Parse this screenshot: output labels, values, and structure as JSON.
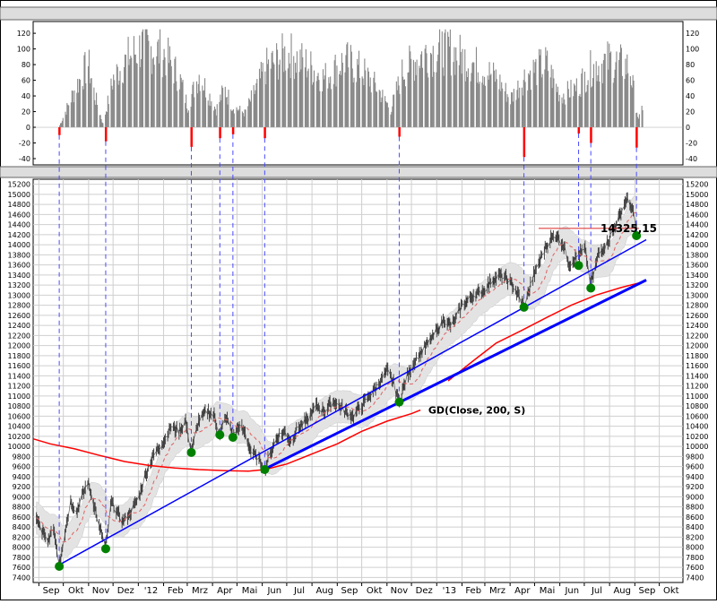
{
  "chart_data": [
    {
      "type": "bar",
      "panel": "oscillator",
      "ylim": [
        -48,
        135
      ],
      "yticks": [
        -40,
        -20,
        0,
        20,
        40,
        60,
        80,
        100,
        120
      ],
      "bar_color": "#888888",
      "negative_color": "#ff0000",
      "segments": [
        {
          "date": "2011-09-25",
          "level": 0
        },
        {
          "date": "2011-10-15",
          "level": 55
        },
        {
          "date": "2011-10-31",
          "level": 90
        },
        {
          "date": "2011-11-08",
          "level": 45
        },
        {
          "date": "2011-11-18",
          "level": 5
        },
        {
          "date": "2011-12-01",
          "level": 70
        },
        {
          "date": "2011-12-20",
          "level": 100
        },
        {
          "date": "2012-01-05",
          "level": 115
        },
        {
          "date": "2012-02-01",
          "level": 105
        },
        {
          "date": "2012-02-20",
          "level": 70
        },
        {
          "date": "2012-03-01",
          "level": 30
        },
        {
          "date": "2012-03-15",
          "level": 75
        },
        {
          "date": "2012-04-05",
          "level": 25
        },
        {
          "date": "2012-04-15",
          "level": 55
        },
        {
          "date": "2012-04-25",
          "level": 30
        },
        {
          "date": "2012-05-10",
          "level": 20
        },
        {
          "date": "2012-05-20",
          "level": 45
        },
        {
          "date": "2012-06-05",
          "level": 85
        },
        {
          "date": "2012-07-01",
          "level": 105
        },
        {
          "date": "2012-07-25",
          "level": 90
        },
        {
          "date": "2012-08-15",
          "level": 70
        },
        {
          "date": "2012-09-10",
          "level": 95
        },
        {
          "date": "2012-10-01",
          "level": 80
        },
        {
          "date": "2012-10-20",
          "level": 55
        },
        {
          "date": "2012-11-05",
          "level": 25
        },
        {
          "date": "2012-11-20",
          "level": 80
        },
        {
          "date": "2012-12-15",
          "level": 105
        },
        {
          "date": "2013-01-15",
          "level": 110
        },
        {
          "date": "2013-02-15",
          "level": 90
        },
        {
          "date": "2013-03-15",
          "level": 70
        },
        {
          "date": "2013-04-01",
          "level": 40
        },
        {
          "date": "2013-04-20",
          "level": 75
        },
        {
          "date": "2013-05-15",
          "level": 90
        },
        {
          "date": "2013-06-01",
          "level": 45
        },
        {
          "date": "2013-06-20",
          "level": 55
        },
        {
          "date": "2013-07-10",
          "level": 85
        },
        {
          "date": "2013-08-01",
          "level": 95
        },
        {
          "date": "2013-08-25",
          "level": 85
        },
        {
          "date": "2013-09-05",
          "level": 10
        },
        {
          "date": "2013-09-10",
          "level": 30
        }
      ],
      "negative_spikes": [
        {
          "date": "2011-09-26",
          "value": -10
        },
        {
          "date": "2011-11-22",
          "value": -18
        },
        {
          "date": "2012-03-06",
          "value": -25
        },
        {
          "date": "2012-04-10",
          "value": -14
        },
        {
          "date": "2012-04-26",
          "value": -9
        },
        {
          "date": "2012-06-04",
          "value": -14
        },
        {
          "date": "2012-11-16",
          "value": -12
        },
        {
          "date": "2013-04-18",
          "value": -38
        },
        {
          "date": "2013-06-24",
          "value": -8
        },
        {
          "date": "2013-07-09",
          "value": -20
        },
        {
          "date": "2013-09-03",
          "value": -26
        }
      ]
    },
    {
      "type": "line",
      "panel": "price",
      "ylim": [
        7300,
        15300
      ],
      "yticks": [
        7400,
        7600,
        7800,
        8000,
        8200,
        8400,
        8600,
        8800,
        9000,
        9200,
        9400,
        9600,
        9800,
        10000,
        10200,
        10400,
        10600,
        10800,
        11000,
        11200,
        11400,
        11600,
        11800,
        12000,
        12200,
        12400,
        12600,
        12800,
        13000,
        13200,
        13400,
        13600,
        13800,
        14000,
        14200,
        14400,
        14600,
        14800,
        15000,
        15200
      ],
      "x_range": [
        "2011-08-25",
        "2013-10-30"
      ],
      "x_tick_labels": [
        "Sep",
        "Okt",
        "Nov",
        "Dez",
        "'12",
        "Feb",
        "Mrz",
        "Apr",
        "Mai",
        "Jun",
        "Jul",
        "Aug",
        "Sep",
        "Okt",
        "Nov",
        "Dez",
        "'13",
        "Feb",
        "Mrz",
        "Apr",
        "Mai",
        "Jun",
        "Jul",
        "Aug",
        "Sep",
        "Okt"
      ],
      "grid": true,
      "price_path": [
        {
          "date": "2011-08-29",
          "value": 8600
        },
        {
          "date": "2011-09-05",
          "value": 8300
        },
        {
          "date": "2011-09-12",
          "value": 8100
        },
        {
          "date": "2011-09-19",
          "value": 8400
        },
        {
          "date": "2011-09-26",
          "value": 7650
        },
        {
          "date": "2011-10-03",
          "value": 8300
        },
        {
          "date": "2011-10-10",
          "value": 8900
        },
        {
          "date": "2011-10-17",
          "value": 8700
        },
        {
          "date": "2011-10-24",
          "value": 9000
        },
        {
          "date": "2011-10-31",
          "value": 9300
        },
        {
          "date": "2011-11-07",
          "value": 8900
        },
        {
          "date": "2011-11-14",
          "value": 8400
        },
        {
          "date": "2011-11-22",
          "value": 8000
        },
        {
          "date": "2011-11-29",
          "value": 8900
        },
        {
          "date": "2011-12-06",
          "value": 8700
        },
        {
          "date": "2011-12-13",
          "value": 8500
        },
        {
          "date": "2011-12-20",
          "value": 8650
        },
        {
          "date": "2012-01-02",
          "value": 9000
        },
        {
          "date": "2012-01-09",
          "value": 9400
        },
        {
          "date": "2012-01-16",
          "value": 9700
        },
        {
          "date": "2012-01-23",
          "value": 9900
        },
        {
          "date": "2012-02-01",
          "value": 10100
        },
        {
          "date": "2012-02-10",
          "value": 10400
        },
        {
          "date": "2012-02-20",
          "value": 10300
        },
        {
          "date": "2012-02-28",
          "value": 10500
        },
        {
          "date": "2012-03-06",
          "value": 9900
        },
        {
          "date": "2012-03-15",
          "value": 10500
        },
        {
          "date": "2012-03-25",
          "value": 10700
        },
        {
          "date": "2012-04-03",
          "value": 10600
        },
        {
          "date": "2012-04-10",
          "value": 10250
        },
        {
          "date": "2012-04-18",
          "value": 10600
        },
        {
          "date": "2012-04-26",
          "value": 10200
        },
        {
          "date": "2012-05-03",
          "value": 10400
        },
        {
          "date": "2012-05-10",
          "value": 10300
        },
        {
          "date": "2012-05-18",
          "value": 9900
        },
        {
          "date": "2012-05-25",
          "value": 9800
        },
        {
          "date": "2012-06-04",
          "value": 9550
        },
        {
          "date": "2012-06-12",
          "value": 9900
        },
        {
          "date": "2012-06-20",
          "value": 10200
        },
        {
          "date": "2012-06-28",
          "value": 10300
        },
        {
          "date": "2012-07-06",
          "value": 10100
        },
        {
          "date": "2012-07-16",
          "value": 10400
        },
        {
          "date": "2012-07-26",
          "value": 10500
        },
        {
          "date": "2012-08-06",
          "value": 10800
        },
        {
          "date": "2012-08-16",
          "value": 10700
        },
        {
          "date": "2012-08-28",
          "value": 10900
        },
        {
          "date": "2012-09-10",
          "value": 10700
        },
        {
          "date": "2012-09-20",
          "value": 10600
        },
        {
          "date": "2012-10-01",
          "value": 10800
        },
        {
          "date": "2012-10-10",
          "value": 11000
        },
        {
          "date": "2012-10-20",
          "value": 11200
        },
        {
          "date": "2012-11-01",
          "value": 11500
        },
        {
          "date": "2012-11-08",
          "value": 11300
        },
        {
          "date": "2012-11-16",
          "value": 10900
        },
        {
          "date": "2012-11-26",
          "value": 11400
        },
        {
          "date": "2012-12-05",
          "value": 11700
        },
        {
          "date": "2012-12-15",
          "value": 11900
        },
        {
          "date": "2012-12-28",
          "value": 12200
        },
        {
          "date": "2013-01-10",
          "value": 12500
        },
        {
          "date": "2013-01-20",
          "value": 12400
        },
        {
          "date": "2013-02-01",
          "value": 12800
        },
        {
          "date": "2013-02-15",
          "value": 13000
        },
        {
          "date": "2013-02-28",
          "value": 13100
        },
        {
          "date": "2013-03-10",
          "value": 13300
        },
        {
          "date": "2013-03-20",
          "value": 13400
        },
        {
          "date": "2013-03-30",
          "value": 13300
        },
        {
          "date": "2013-04-08",
          "value": 13100
        },
        {
          "date": "2013-04-18",
          "value": 12750
        },
        {
          "date": "2013-04-28",
          "value": 13300
        },
        {
          "date": "2013-05-10",
          "value": 13800
        },
        {
          "date": "2013-05-20",
          "value": 14100
        },
        {
          "date": "2013-05-28",
          "value": 14200
        },
        {
          "date": "2013-06-05",
          "value": 14000
        },
        {
          "date": "2013-06-13",
          "value": 13600
        },
        {
          "date": "2013-06-24",
          "value": 13800
        },
        {
          "date": "2013-07-02",
          "value": 13900
        },
        {
          "date": "2013-07-09",
          "value": 13200
        },
        {
          "date": "2013-07-18",
          "value": 13800
        },
        {
          "date": "2013-07-28",
          "value": 14000
        },
        {
          "date": "2013-08-06",
          "value": 14300
        },
        {
          "date": "2013-08-14",
          "value": 14600
        },
        {
          "date": "2013-08-22",
          "value": 14900
        },
        {
          "date": "2013-08-29",
          "value": 14700
        },
        {
          "date": "2013-09-03",
          "value": 14300
        }
      ],
      "ma_short": {
        "color": "#e06060",
        "dashed": true
      },
      "band": {
        "color": "#e3e3e3",
        "half_width": 320
      },
      "ma200": {
        "label": "GD(Close, 200, S)",
        "color": "#ff0000",
        "points": [
          {
            "date": "2011-08-25",
            "value": 10150
          },
          {
            "date": "2011-09-15",
            "value": 10050
          },
          {
            "date": "2011-10-15",
            "value": 9950
          },
          {
            "date": "2011-11-15",
            "value": 9820
          },
          {
            "date": "2011-12-15",
            "value": 9700
          },
          {
            "date": "2012-01-15",
            "value": 9620
          },
          {
            "date": "2012-02-15",
            "value": 9570
          },
          {
            "date": "2012-03-15",
            "value": 9540
          },
          {
            "date": "2012-04-15",
            "value": 9520
          },
          {
            "date": "2012-05-15",
            "value": 9510
          },
          {
            "date": "2012-06-04",
            "value": 9540
          },
          {
            "date": "2012-07-01",
            "value": 9650
          },
          {
            "date": "2012-08-01",
            "value": 9850
          },
          {
            "date": "2012-09-01",
            "value": 10050
          },
          {
            "date": "2012-10-01",
            "value": 10300
          },
          {
            "date": "2012-11-01",
            "value": 10500
          },
          {
            "date": "2012-12-01",
            "value": 10650
          },
          {
            "date": "2012-12-12",
            "value": 10720
          }
        ],
        "points_late": [
          {
            "date": "2013-01-15",
            "value": 11300
          },
          {
            "date": "2013-02-15",
            "value": 11700
          },
          {
            "date": "2013-03-15",
            "value": 12050
          },
          {
            "date": "2013-04-15",
            "value": 12300
          },
          {
            "date": "2013-05-15",
            "value": 12550
          },
          {
            "date": "2013-06-15",
            "value": 12800
          },
          {
            "date": "2013-07-15",
            "value": 13000
          },
          {
            "date": "2013-08-15",
            "value": 13150
          },
          {
            "date": "2013-09-08",
            "value": 13250
          }
        ]
      },
      "horizontal_level": {
        "value": 14325.15,
        "label": "14325,15",
        "from": "2013-05-06",
        "to": "2013-09-06",
        "color": "#e04040"
      },
      "trendlines": [
        {
          "from": {
            "date": "2011-09-26",
            "value": 7650
          },
          "to": {
            "date": "2013-09-15",
            "value": 14100
          },
          "color": "#0000ff",
          "thick": false
        },
        {
          "from": {
            "date": "2012-06-04",
            "value": 9550
          },
          "to": {
            "date": "2013-09-15",
            "value": 13300
          },
          "color": "#0000ff",
          "thick": true
        }
      ],
      "markers": [
        {
          "date": "2011-09-26",
          "value": 7620
        },
        {
          "date": "2011-11-22",
          "value": 7970
        },
        {
          "date": "2012-03-06",
          "value": 9880
        },
        {
          "date": "2012-04-10",
          "value": 10230
        },
        {
          "date": "2012-04-26",
          "value": 10180
        },
        {
          "date": "2012-06-04",
          "value": 9540
        },
        {
          "date": "2012-11-16",
          "value": 10880
        },
        {
          "date": "2013-04-18",
          "value": 12760
        },
        {
          "date": "2013-06-24",
          "value": 13590
        },
        {
          "date": "2013-07-09",
          "value": 13140
        },
        {
          "date": "2013-09-03",
          "value": 14180
        }
      ],
      "marker_color": "#008000",
      "vlines_color": "#4a4aff"
    }
  ]
}
